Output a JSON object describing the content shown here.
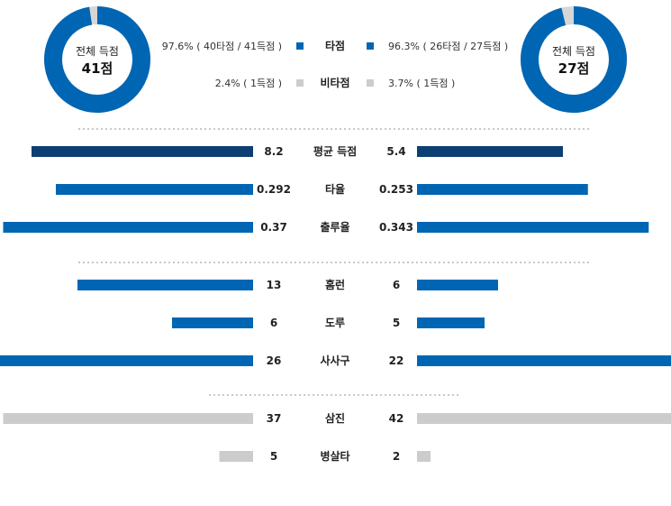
{
  "colors": {
    "team_blue": "#0066b3",
    "dark_navy": "#0e3f72",
    "grey": "#cccccc",
    "track": "#d6d6d6",
    "divider": "#c8c8c8"
  },
  "summary": {
    "left": {
      "caption": "전체 득점",
      "total": "41점",
      "ratio": 0.976
    },
    "right": {
      "caption": "전체 득점",
      "total": "27점",
      "ratio": 0.963
    },
    "legend": [
      {
        "label": "타점",
        "left": "97.6% ( 40타점 / 41득점 )",
        "right": "96.3% ( 26타점 / 27득점 )",
        "color": "#0066b3"
      },
      {
        "label": "비타점",
        "left": "2.4% ( 1득점 )",
        "right": "3.7% ( 1득점 )",
        "color": "#cccccc"
      }
    ]
  },
  "chart_data": {
    "type": "bar",
    "groups": [
      {
        "rows": [
          {
            "category": "평균 득점",
            "left": 8.2,
            "right": 5.4,
            "left_label": "8.2",
            "right_label": "5.4",
            "color": "#0e3f72"
          },
          {
            "category": "타율",
            "left": 0.292,
            "right": 0.253,
            "left_label": "0.292",
            "right_label": "0.253",
            "color": "#0066b3"
          },
          {
            "category": "출루율",
            "left": 0.37,
            "right": 0.343,
            "left_label": "0.37",
            "right_label": "0.343",
            "color": "#0066b3"
          }
        ]
      },
      {
        "rows": [
          {
            "category": "홈런",
            "left": 13,
            "right": 6,
            "left_label": "13",
            "right_label": "6",
            "color": "#0066b3"
          },
          {
            "category": "도루",
            "left": 6,
            "right": 5,
            "left_label": "6",
            "right_label": "5",
            "color": "#0066b3"
          },
          {
            "category": "사사구",
            "left": 26,
            "right": 22,
            "left_label": "26",
            "right_label": "22",
            "color": "#0066b3"
          }
        ]
      },
      {
        "rows": [
          {
            "category": "삼진",
            "left": 37,
            "right": 42,
            "left_label": "37",
            "right_label": "42",
            "color": "#cccccc"
          },
          {
            "category": "병살타",
            "left": 5,
            "right": 2,
            "left_label": "5",
            "right_label": "2",
            "color": "#cccccc"
          }
        ]
      }
    ]
  }
}
